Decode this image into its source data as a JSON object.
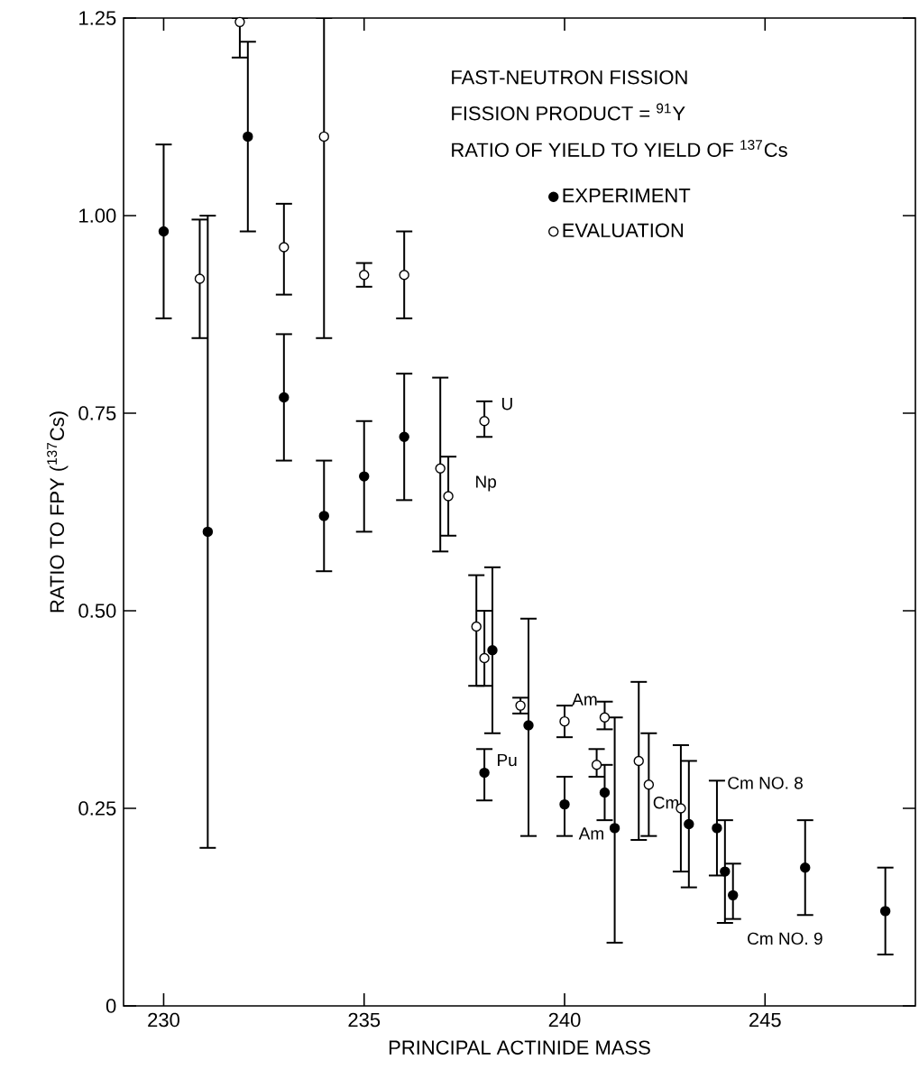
{
  "chart_data": {
    "type": "scatter",
    "xlabel": "PRINCIPAL ACTINIDE MASS",
    "ylabel": "RATIO TO FPY ($^{137}$Cs)",
    "xlim": [
      229,
      248.75
    ],
    "ylim": [
      0,
      1.25
    ],
    "xticks": [
      230,
      235,
      240,
      245
    ],
    "yticks": [
      0,
      0.25,
      {
        "value": 0.5,
        "label": "0.50"
      },
      0.75,
      {
        "value": 1.0,
        "label": "1.00"
      },
      1.25
    ],
    "marker": "circle",
    "legend": "top right",
    "series": [
      {
        "name": "EXPERIMENT",
        "color": "#000000",
        "x": [
          230,
          231.1,
          232.1,
          233,
          234,
          235,
          236,
          238.2,
          238,
          239.1,
          240,
          241,
          241.25,
          243.1,
          243.8,
          244,
          244.2,
          246,
          248
        ],
        "values": [
          0.98,
          0.6,
          1.1,
          0.77,
          0.62,
          0.67,
          0.72,
          0.45,
          0.295,
          0.355,
          0.255,
          0.27,
          0.225,
          0.23,
          0.225,
          0.17,
          0.14,
          0.175,
          0.12
        ],
        "errors": [
          [
            0.87,
            1.09
          ],
          [
            0.2,
            1.0
          ],
          [
            0.98,
            1.22
          ],
          [
            0.69,
            0.85
          ],
          [
            0.55,
            0.69
          ],
          [
            0.6,
            0.74
          ],
          [
            0.64,
            0.8
          ],
          [
            0.345,
            0.555
          ],
          [
            0.26,
            0.325
          ],
          [
            0.215,
            0.49
          ],
          [
            0.215,
            0.29
          ],
          [
            0.235,
            0.305
          ],
          [
            0.08,
            0.365
          ],
          [
            0.15,
            0.31
          ],
          [
            0.165,
            0.285
          ],
          [
            0.105,
            0.235
          ],
          [
            0.11,
            0.18
          ],
          [
            0.115,
            0.235
          ],
          [
            0.065,
            0.175
          ]
        ]
      },
      {
        "name": "EVALUATION",
        "color": "#000000",
        "x": [
          230.9,
          231.9,
          233,
          234,
          235,
          236,
          236.9,
          237.1,
          238,
          237.8,
          238,
          238.9,
          240,
          241,
          240.8,
          241.85,
          242.1,
          242.9
        ],
        "values": [
          0.92,
          1.245,
          0.96,
          1.1,
          0.925,
          0.925,
          0.68,
          0.645,
          0.74,
          0.48,
          0.44,
          0.38,
          0.36,
          0.365,
          0.305,
          0.31,
          0.28,
          0.25
        ],
        "errors": [
          [
            0.845,
            0.995
          ],
          [
            1.2,
            1.25
          ],
          [
            0.9,
            1.015
          ],
          [
            0.845,
            1.25
          ],
          [
            0.91,
            0.94
          ],
          [
            0.87,
            0.98
          ],
          [
            0.575,
            0.795
          ],
          [
            0.595,
            0.695
          ],
          [
            0.72,
            0.765
          ],
          [
            0.405,
            0.545
          ],
          [
            0.405,
            0.5
          ],
          [
            0.37,
            0.39
          ],
          [
            0.34,
            0.38
          ],
          [
            0.35,
            0.385
          ],
          [
            0.29,
            0.325
          ],
          [
            0.21,
            0.41
          ],
          [
            0.215,
            0.345
          ],
          [
            0.17,
            0.33
          ]
        ]
      }
    ],
    "annotations": [
      "FAST-NEUTRON FISSION",
      "FISSION PRODUCT = $^{91}$Y",
      "RATIO OF YIELD TO YIELD OF $^{137}$Cs",
      {
        "text": "U",
        "x": 238,
        "y": 0.74
      },
      {
        "text": "Np",
        "x": 237.1,
        "y": 0.645
      },
      {
        "text": "Pu",
        "x": 238,
        "y": 0.295
      },
      {
        "text": "Am",
        "x": 241,
        "y": 0.365
      },
      {
        "text": "Am",
        "x": 241.25,
        "y": 0.225
      },
      {
        "text": "Cm",
        "x": 242.1,
        "y": 0.28
      },
      {
        "text": "Cm NO. 8",
        "x": 243.8,
        "y": 0.225
      },
      {
        "text": "Cm NO. 9",
        "x": 244.2,
        "y": 0.14
      }
    ]
  }
}
